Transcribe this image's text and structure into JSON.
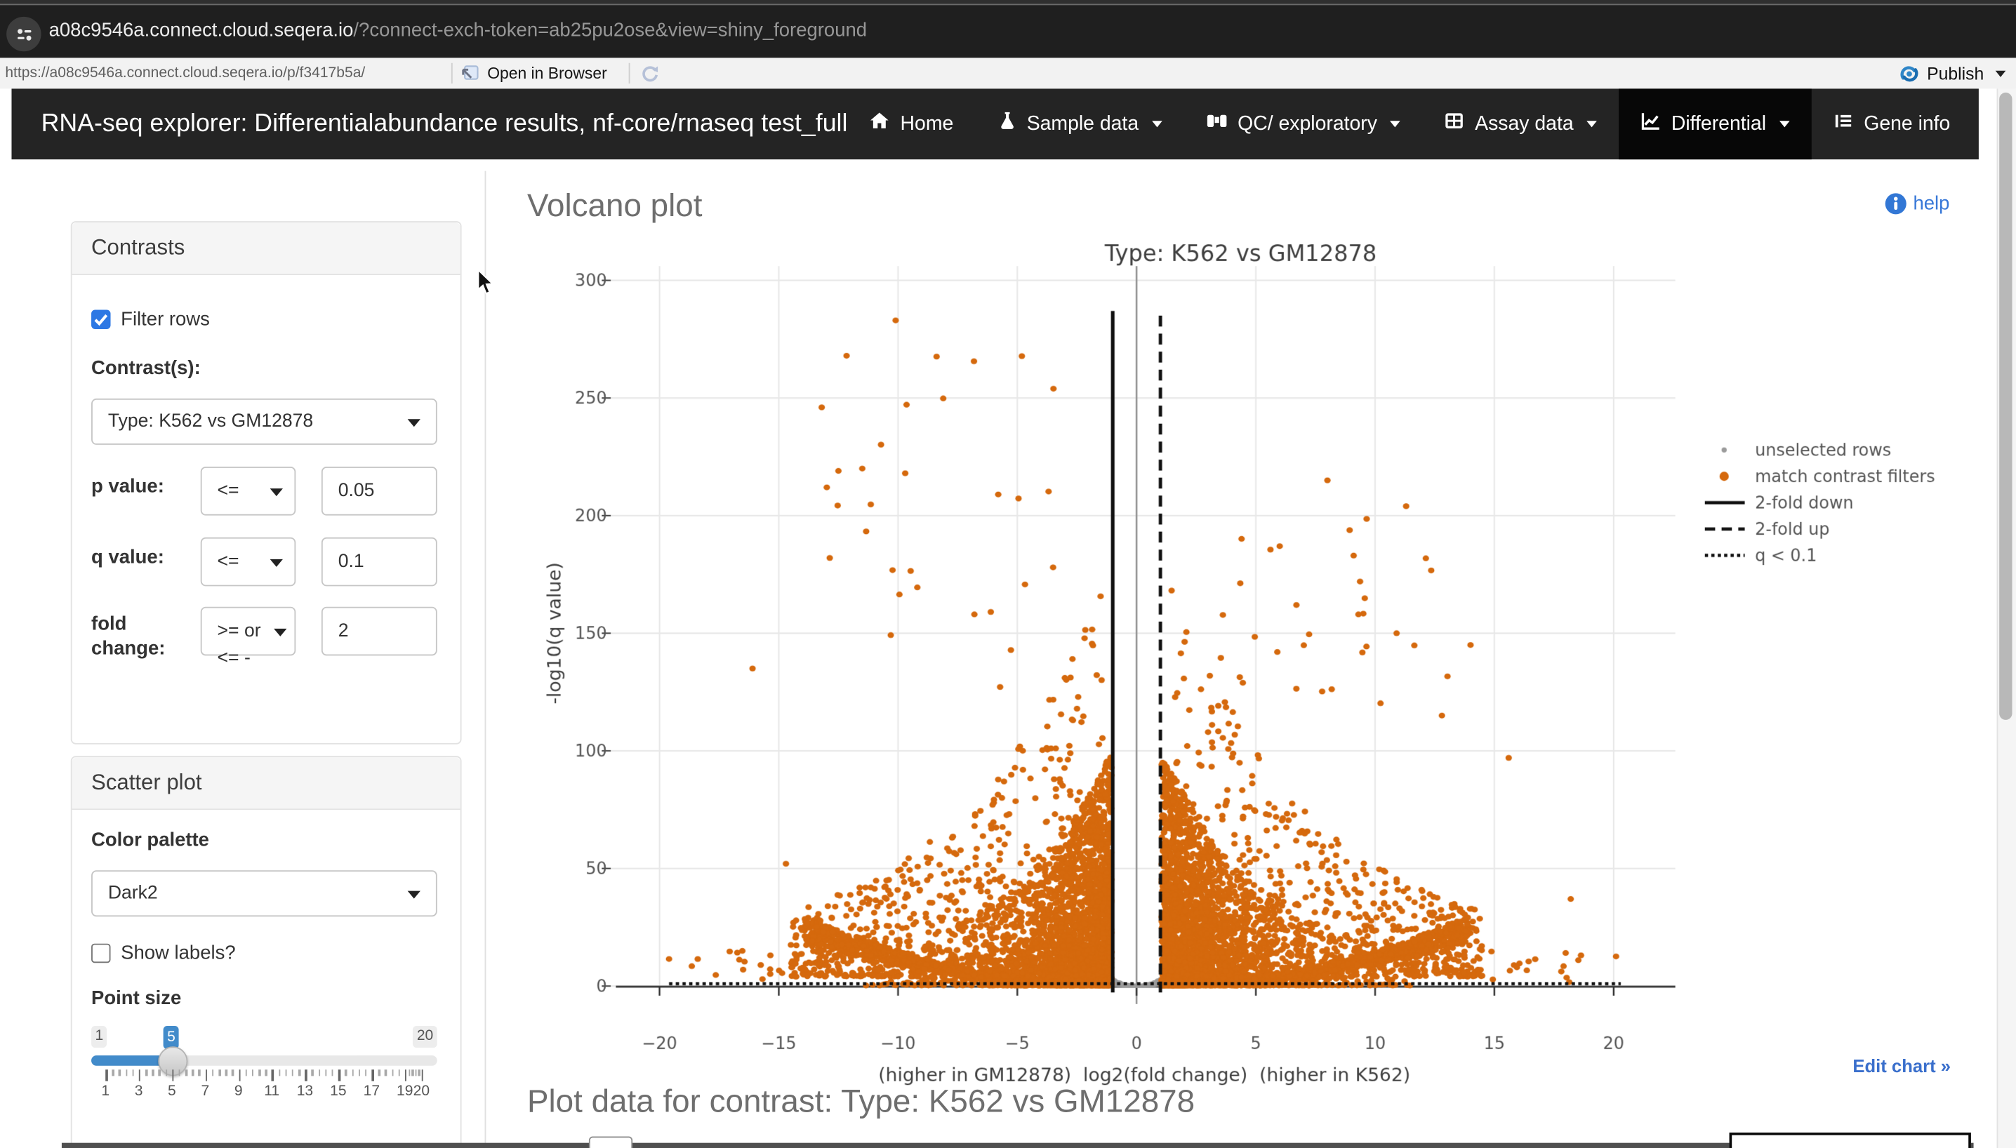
{
  "browser": {
    "url_host": "a08c9546a.connect.cloud.seqera.io",
    "url_params": "/?connect-exch-token=ab25pu2ose&view=shiny_foreground",
    "page_url": "https://a08c9546a.connect.cloud.seqera.io/p/f3417b5a/",
    "open_in_browser_label": "Open in Browser",
    "publish_label": "Publish"
  },
  "navbar": {
    "brand": "RNA-seq explorer: Differentialabundance results, nf-core/rnaseq test_full",
    "items": [
      {
        "label": "Home",
        "icon": "home-icon",
        "caret": false,
        "active": false
      },
      {
        "label": "Sample data",
        "icon": "flask-icon",
        "caret": true,
        "active": false
      },
      {
        "label": "QC/ exploratory",
        "icon": "binoculars-icon",
        "caret": true,
        "active": false
      },
      {
        "label": "Assay data",
        "icon": "table-icon",
        "caret": true,
        "active": false
      },
      {
        "label": "Differential",
        "icon": "chart-line-icon",
        "caret": true,
        "active": true
      },
      {
        "label": "Gene info",
        "icon": "list-icon",
        "caret": false,
        "active": false
      }
    ]
  },
  "sidebar": {
    "contrasts": {
      "title": "Contrasts",
      "filter_rows_label": "Filter rows",
      "filter_rows_checked": true,
      "contrast_label": "Contrast(s):",
      "contrast_value": "Type: K562 vs GM12878",
      "rows": [
        {
          "label": "p value:",
          "op": "<=",
          "value": "0.05"
        },
        {
          "label": "q value:",
          "op": "<=",
          "value": "0.1"
        },
        {
          "label": "fold change:",
          "op": ">= or",
          "op_overflow": "<= -",
          "value": "2"
        }
      ]
    },
    "scatter": {
      "title": "Scatter plot",
      "color_palette_label": "Color palette",
      "color_palette_value": "Dark2",
      "show_labels_label": "Show labels?",
      "show_labels_checked": false,
      "point_size_label": "Point size",
      "slider": {
        "min_label": "1",
        "value_label": "5",
        "max_label": "20",
        "min": 1,
        "max": 20,
        "value": 5,
        "tick_labels": [
          1,
          3,
          5,
          7,
          9,
          11,
          13,
          15,
          17,
          19,
          20
        ]
      }
    }
  },
  "main": {
    "heading": "Volcano plot",
    "help_label": "help",
    "edit_chart_label": "Edit chart »",
    "plot_data_heading": "Plot data for contrast: Type: K562 vs GM12878"
  },
  "chart_data": {
    "type": "scatter",
    "title": "Type: K562 vs GM12878",
    "xlabel": "(higher in GM12878)  log2(fold change)  (higher in K562)",
    "ylabel": "-log10(q value)",
    "xlim": [
      -22.3,
      22.6
    ],
    "ylim": [
      -8,
      310
    ],
    "x_ticks": [
      -20,
      -15,
      -10,
      -5,
      0,
      5,
      10,
      15,
      20
    ],
    "y_ticks": [
      0,
      50,
      100,
      150,
      200,
      250,
      300
    ],
    "grid": true,
    "colors": {
      "selected": "#d5690d",
      "unselected": "#9b9b9b",
      "line": "#111111",
      "zero_axis": "#909090"
    },
    "legend": {
      "position": "right",
      "entries": [
        {
          "label": "unselected rows",
          "marker": "dot-small",
          "color": "#9b9b9b"
        },
        {
          "label": "match contrast filters",
          "marker": "dot",
          "color": "#d5690d"
        },
        {
          "label": "2-fold down",
          "marker": "line-solid",
          "color": "#111111"
        },
        {
          "label": "2-fold up",
          "marker": "line-dashed",
          "color": "#111111"
        },
        {
          "label": "q < 0.1",
          "marker": "line-dotted",
          "color": "#111111"
        }
      ]
    },
    "lines": [
      {
        "name": "2-fold down",
        "style": "solid",
        "orientation": "vertical",
        "x": -1,
        "y_range": [
          0,
          287
        ]
      },
      {
        "name": "2-fold up",
        "style": "dashed",
        "orientation": "vertical",
        "x": 1,
        "y_range": [
          0,
          285
        ]
      },
      {
        "name": "q < 0.1",
        "style": "dotted",
        "orientation": "horizontal",
        "y": 1,
        "x_range": [
          -19.6,
          20.3
        ]
      }
    ],
    "notable_points": [
      [
        -10.1,
        283
      ],
      [
        -13.2,
        246
      ],
      [
        -12.5,
        219
      ],
      [
        -11.5,
        220
      ],
      [
        -9.7,
        218
      ],
      [
        -5.8,
        209
      ],
      [
        -3.5,
        178
      ],
      [
        -6.8,
        158
      ],
      [
        -16.1,
        135
      ],
      [
        -14.7,
        52
      ],
      [
        -19.6,
        11.5
      ],
      [
        8.0,
        215
      ],
      [
        11.3,
        204
      ],
      [
        9.1,
        183
      ],
      [
        6.0,
        187
      ],
      [
        14.0,
        145
      ],
      [
        6.7,
        162
      ],
      [
        12.8,
        115
      ],
      [
        15.6,
        97
      ],
      [
        18.2,
        37
      ],
      [
        20.1,
        12.6
      ],
      [
        5.9,
        142
      ],
      [
        9.3,
        158
      ],
      [
        10.9,
        150
      ]
    ],
    "generation": {
      "seed": 42,
      "arm_n": 750,
      "wedge_n": 2800,
      "mid_n": 650,
      "high_n": 55,
      "far_n": 16,
      "gray_n": 320
    }
  }
}
